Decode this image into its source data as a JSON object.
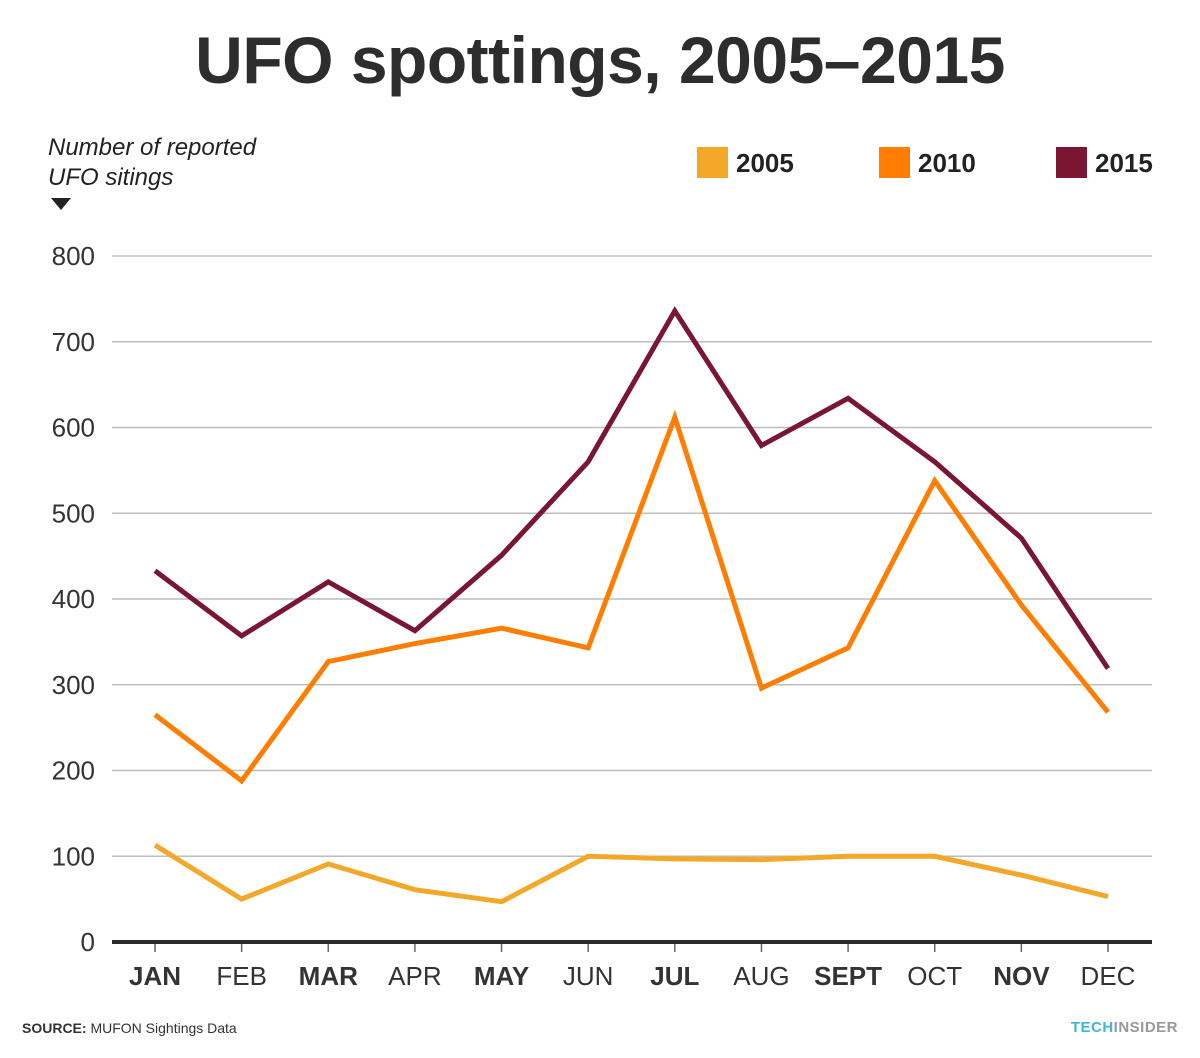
{
  "chart_data": {
    "type": "line",
    "title": "UFO spottings, 2005–2015",
    "ylabel": [
      "Number of reported",
      "UFO sitings"
    ],
    "xlabel": "",
    "categories": [
      "JAN",
      "FEB",
      "MAR",
      "APR",
      "MAY",
      "JUN",
      "JUL",
      "AUG",
      "SEPT",
      "OCT",
      "NOV",
      "DEC"
    ],
    "bold_categories": [
      "JAN",
      "MAR",
      "MAY",
      "JUL",
      "SEPT",
      "NOV"
    ],
    "ylim": [
      0,
      800
    ],
    "yticks": [
      0,
      100,
      200,
      300,
      400,
      500,
      600,
      700,
      800
    ],
    "grid": true,
    "legend_position": "top-right",
    "series": [
      {
        "name": "2005",
        "color": "#f3a82a",
        "values": [
          113,
          50,
          91,
          61,
          47,
          100,
          97,
          96,
          100,
          100,
          78,
          53
        ]
      },
      {
        "name": "2010",
        "color": "#ff7d00",
        "values": [
          265,
          188,
          327,
          348,
          366,
          343,
          612,
          296,
          343,
          538,
          393,
          268
        ]
      },
      {
        "name": "2015",
        "color": "#7a1532",
        "values": [
          433,
          357,
          420,
          363,
          451,
          560,
          736,
          579,
          634,
          560,
          471,
          319
        ]
      }
    ]
  },
  "footer": {
    "source_label": "SOURCE:",
    "source_text": "MUFON Sightings Data",
    "brand_tech": "TECH",
    "brand_insider": "INSIDER"
  }
}
